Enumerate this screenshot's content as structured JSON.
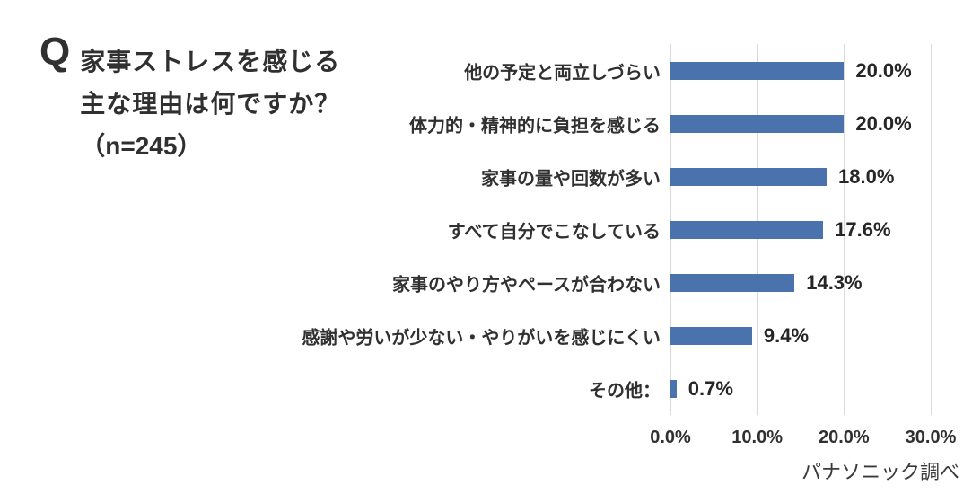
{
  "question": {
    "mark": "Q",
    "lines": [
      "家事ストレスを感じる",
      "主な理由は何ですか？",
      "（n=245）"
    ]
  },
  "colors": {
    "bar": "#4a73ad",
    "grid": "#d9d9d9",
    "text": "#303030"
  },
  "chart_data": {
    "type": "bar",
    "orientation": "horizontal",
    "title": "家事ストレスを感じる主な理由は何ですか？（n=245）",
    "sample_size_label": "（n=245）",
    "categories": [
      "他の予定と両立しづらい",
      "体力的・精神的に負担を感じる",
      "家事の量や回数が多い",
      "すべて自分でこなしている",
      "家事のやり方やペースが合わない",
      "感謝や労いが少ない・やりがいを感じにくい",
      "その他："
    ],
    "values": [
      20.0,
      20.0,
      18.0,
      17.6,
      14.3,
      9.4,
      0.7
    ],
    "value_labels": [
      "20.0%",
      "20.0%",
      "18.0%",
      "17.6%",
      "14.3%",
      "9.4%",
      "0.7%"
    ],
    "xlim": [
      0,
      30
    ],
    "x_ticks": [
      {
        "value": 0,
        "label": "0.0%"
      },
      {
        "value": 10,
        "label": "10.0%"
      },
      {
        "value": 20,
        "label": "20.0%"
      },
      {
        "value": 30,
        "label": "30.0%"
      }
    ],
    "grid": true,
    "legend": false,
    "source_note": "パナソニック調べ"
  }
}
